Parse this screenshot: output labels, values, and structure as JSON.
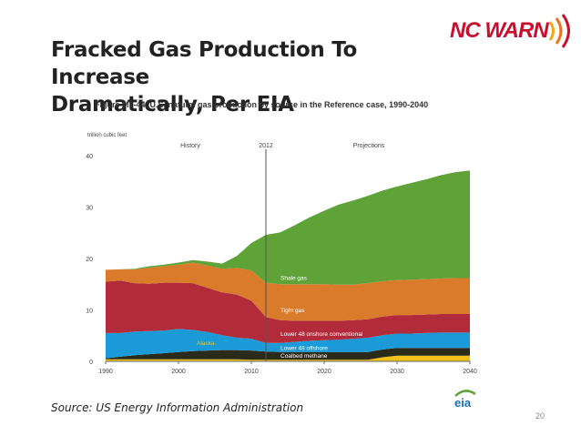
{
  "slide": {
    "title_line1": "Fracked Gas Production To Increase",
    "title_line2": "Dramatically, Per EIA",
    "logo_text": "NC WARN",
    "figure_caption": "Figure MT-44. U.S. natural gas production by source in the Reference case, 1990-2040",
    "source": "Source: US Energy Information Administration",
    "page_number": "20",
    "eia_logo_text": "eia"
  },
  "chart_data": {
    "type": "area",
    "stacked": true,
    "ylabel": "trillion cubic feet",
    "xlim": [
      1990,
      2040
    ],
    "ylim": [
      0,
      40
    ],
    "xticks": [
      1990,
      2000,
      2010,
      2020,
      2030,
      2040
    ],
    "yticks": [
      0,
      10,
      20,
      30,
      40
    ],
    "grid": false,
    "divider_year": 2012,
    "period_labels": [
      "History",
      "2012",
      "Projections"
    ],
    "x": [
      1990,
      1992,
      1994,
      1996,
      1998,
      2000,
      2002,
      2004,
      2006,
      2008,
      2010,
      2012,
      2014,
      2016,
      2018,
      2020,
      2022,
      2024,
      2026,
      2028,
      2030,
      2032,
      2034,
      2036,
      2038,
      2040
    ],
    "series": [
      {
        "name": "Alaska",
        "color": "#f2c21b",
        "values": [
          0.4,
          0.4,
          0.4,
          0.4,
          0.4,
          0.4,
          0.4,
          0.4,
          0.4,
          0.4,
          0.3,
          0.3,
          0.3,
          0.3,
          0.3,
          0.3,
          0.3,
          0.3,
          0.3,
          0.8,
          1.1,
          1.1,
          1.1,
          1.1,
          1.1,
          1.1
        ]
      },
      {
        "name": "Coalbed methane",
        "color": "#2b2b1b",
        "values": [
          0.2,
          0.5,
          0.8,
          1.0,
          1.2,
          1.4,
          1.6,
          1.7,
          1.8,
          1.8,
          1.8,
          1.6,
          1.5,
          1.5,
          1.5,
          1.5,
          1.5,
          1.5,
          1.5,
          1.5,
          1.5,
          1.5,
          1.5,
          1.5,
          1.5,
          1.5
        ]
      },
      {
        "name": "Lower 48 offshore",
        "color": "#1a9ad6",
        "values": [
          4.9,
          4.6,
          4.6,
          4.5,
          4.4,
          4.5,
          4.1,
          3.6,
          2.9,
          2.4,
          2.3,
          1.7,
          1.8,
          2.0,
          2.2,
          2.3,
          2.4,
          2.6,
          2.8,
          2.8,
          2.8,
          2.8,
          2.9,
          3.0,
          3.0,
          3.0
        ]
      },
      {
        "name": "Lower 48 onshore conventional",
        "color": "#b22b3a",
        "values": [
          10.0,
          10.2,
          9.4,
          9.2,
          9.3,
          9.0,
          9.1,
          8.6,
          8.3,
          8.4,
          7.4,
          5.0,
          4.4,
          4.1,
          3.9,
          3.8,
          3.7,
          3.6,
          3.6,
          3.6,
          3.6,
          3.6,
          3.6,
          3.6,
          3.6,
          3.6
        ]
      },
      {
        "name": "Tight gas",
        "color": "#d97b2b",
        "values": [
          2.3,
          2.2,
          2.7,
          3.1,
          3.2,
          3.5,
          4.0,
          4.3,
          4.6,
          5.2,
          5.9,
          6.7,
          7.0,
          7.1,
          7.1,
          7.1,
          7.0,
          6.9,
          7.0,
          6.9,
          6.8,
          6.9,
          6.9,
          6.9,
          7.0,
          7.0
        ]
      },
      {
        "name": "Shale gas",
        "color": "#5fa238",
        "values": [
          0.0,
          0.0,
          0.1,
          0.3,
          0.3,
          0.4,
          0.5,
          0.8,
          1.0,
          2.3,
          5.3,
          9.3,
          10.1,
          11.5,
          13.0,
          14.3,
          15.6,
          16.4,
          17.0,
          17.6,
          18.2,
          18.8,
          19.4,
          20.1,
          20.6,
          20.9
        ]
      }
    ],
    "annotations": [
      {
        "text": "Shale gas",
        "x": 2014,
        "y": 15.8,
        "color": "#ffffff"
      },
      {
        "text": "Tight gas",
        "x": 2014,
        "y": 9.6,
        "color": "#ffffff"
      },
      {
        "text": "Lower 48 onshore conventional",
        "x": 2014,
        "y": 5.0,
        "color": "#ffffff"
      },
      {
        "text": "Lower 48 offshore",
        "x": 2014,
        "y": 2.2,
        "color": "#ffffff"
      },
      {
        "text": "Coalbed methane",
        "x": 2014,
        "y": 0.7,
        "color": "#ffffff"
      },
      {
        "text": "Alaska",
        "x": 2002.5,
        "y": 3.2,
        "color": "#f2c21b"
      }
    ]
  }
}
